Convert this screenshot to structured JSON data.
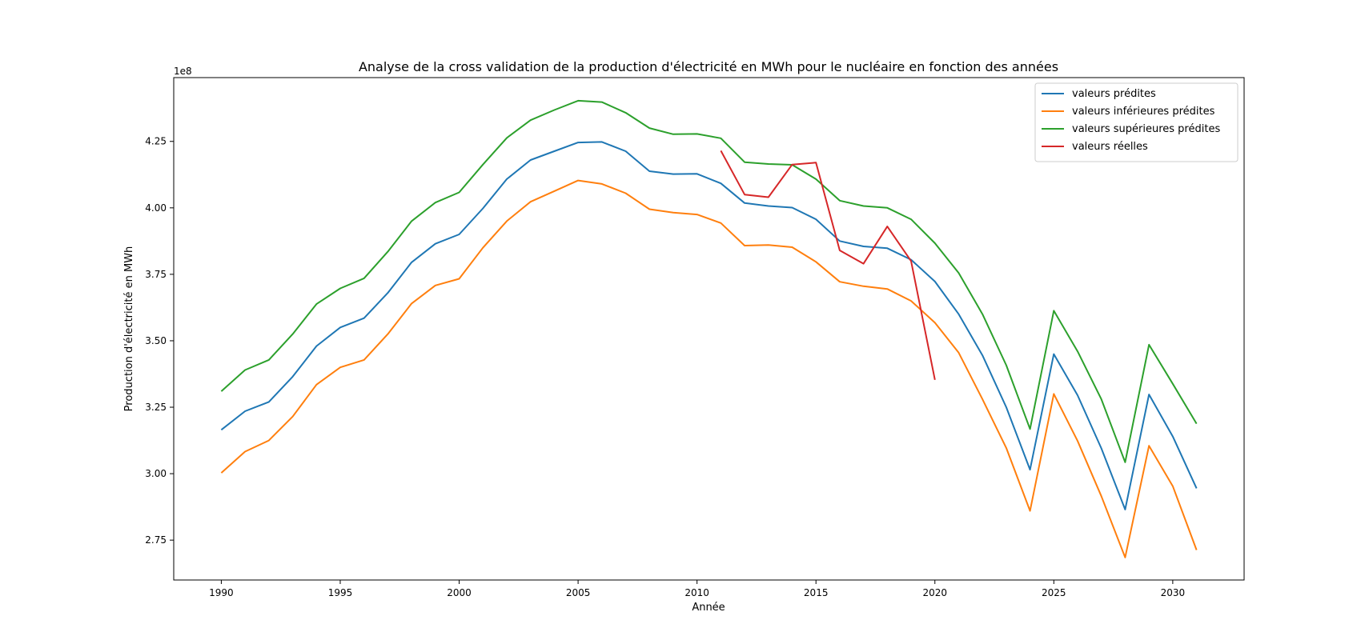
{
  "chart_data": {
    "type": "line",
    "title": "Analyse de la cross validation de la production d'électricité en MWh pour le nucléaire en fonction des années",
    "xlabel": "Année",
    "ylabel": "Production d'électricité en MWh",
    "y_offset_text": "1e8",
    "xlim": [
      1988,
      2033
    ],
    "ylim": [
      2.6,
      4.49
    ],
    "x_ticks": [
      1990,
      1995,
      2000,
      2005,
      2010,
      2015,
      2020,
      2025,
      2030
    ],
    "x_tick_labels": [
      "1990",
      "1995",
      "2000",
      "2005",
      "2010",
      "2015",
      "2020",
      "2025",
      "2030"
    ],
    "y_ticks": [
      2.75,
      3.0,
      3.25,
      3.5,
      3.75,
      4.0,
      4.25
    ],
    "y_tick_labels": [
      "2.75",
      "3.00",
      "3.25",
      "3.50",
      "3.75",
      "4.00",
      "4.25"
    ],
    "grid": false,
    "legend_position": "top-right",
    "series": [
      {
        "name": "valeurs prédites",
        "color": "#1f77b4",
        "x": [
          1990,
          1991,
          1992,
          1993,
          1994,
          1995,
          1996,
          1997,
          1998,
          1999,
          2000,
          2001,
          2002,
          2003,
          2004,
          2005,
          2006,
          2007,
          2008,
          2009,
          2010,
          2011,
          2012,
          2013,
          2014,
          2015,
          2016,
          2017,
          2018,
          2019,
          2020,
          2021,
          2022,
          2023,
          2024,
          2025,
          2026,
          2027,
          2028,
          2029,
          2030,
          2031
        ],
        "values": [
          3.165,
          3.235,
          3.27,
          3.365,
          3.48,
          3.55,
          3.585,
          3.68,
          3.795,
          3.865,
          3.9,
          3.998,
          4.108,
          4.18,
          4.213,
          4.246,
          4.248,
          4.213,
          4.138,
          4.127,
          4.128,
          4.092,
          4.018,
          4.007,
          4.001,
          3.957,
          3.875,
          3.855,
          3.848,
          3.805,
          3.723,
          3.6,
          3.445,
          3.25,
          3.015,
          3.45,
          3.295,
          3.095,
          2.865,
          3.298,
          3.14,
          2.945
        ]
      },
      {
        "name": "valeurs inférieures prédites",
        "color": "#ff7f0e",
        "x": [
          1990,
          1991,
          1992,
          1993,
          1994,
          1995,
          1996,
          1997,
          1998,
          1999,
          2000,
          2001,
          2002,
          2003,
          2004,
          2005,
          2006,
          2007,
          2008,
          2009,
          2010,
          2011,
          2012,
          2013,
          2014,
          2015,
          2016,
          2017,
          2018,
          2019,
          2020,
          2021,
          2022,
          2023,
          2024,
          2025,
          2026,
          2027,
          2028,
          2029,
          2030,
          2031
        ],
        "values": [
          3.003,
          3.083,
          3.125,
          3.215,
          3.335,
          3.4,
          3.428,
          3.525,
          3.64,
          3.708,
          3.733,
          3.85,
          3.95,
          4.023,
          4.063,
          4.103,
          4.09,
          4.055,
          3.995,
          3.982,
          3.975,
          3.943,
          3.858,
          3.86,
          3.852,
          3.797,
          3.722,
          3.705,
          3.695,
          3.65,
          3.568,
          3.455,
          3.28,
          3.097,
          2.86,
          3.3,
          3.123,
          2.915,
          2.685,
          3.105,
          2.953,
          2.713
        ]
      },
      {
        "name": "valeurs supérieures prédites",
        "color": "#2ca02c",
        "x": [
          1990,
          1991,
          1992,
          1993,
          1994,
          1995,
          1996,
          1997,
          1998,
          1999,
          2000,
          2001,
          2002,
          2003,
          2004,
          2005,
          2006,
          2007,
          2008,
          2009,
          2010,
          2011,
          2012,
          2013,
          2014,
          2015,
          2016,
          2017,
          2018,
          2019,
          2020,
          2021,
          2022,
          2023,
          2024,
          2025,
          2026,
          2027,
          2028,
          2029,
          2030,
          2031
        ],
        "values": [
          3.31,
          3.39,
          3.428,
          3.525,
          3.638,
          3.697,
          3.735,
          3.835,
          3.95,
          4.02,
          4.058,
          4.163,
          4.263,
          4.33,
          4.368,
          4.403,
          4.398,
          4.358,
          4.3,
          4.277,
          4.278,
          4.262,
          4.172,
          4.165,
          4.162,
          4.108,
          4.027,
          4.007,
          4.0,
          3.957,
          3.867,
          3.755,
          3.6,
          3.408,
          3.168,
          3.613,
          3.46,
          3.28,
          3.043,
          3.485,
          3.338,
          3.188
        ]
      },
      {
        "name": "valeurs réelles",
        "color": "#d62728",
        "x": [
          2011,
          2012,
          2013,
          2014,
          2015,
          2016,
          2017,
          2018,
          2019,
          2020
        ],
        "values": [
          4.215,
          4.05,
          4.04,
          4.163,
          4.17,
          3.84,
          3.79,
          3.93,
          3.8,
          3.353
        ]
      }
    ]
  }
}
